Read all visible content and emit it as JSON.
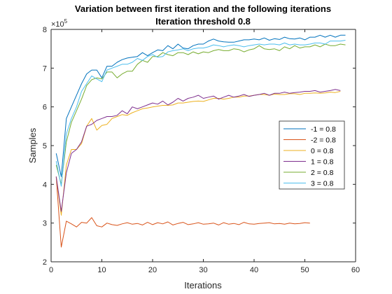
{
  "chart_data": {
    "type": "line",
    "title": "Variation between first iteration and the following iterations",
    "subtitle": "Iteration threshold 0.8",
    "xlabel": "Iterations",
    "ylabel": "Samples",
    "y_exponent_base": "×10",
    "y_exponent_power": "5",
    "xlim": [
      0,
      60
    ],
    "ylim": [
      2,
      8
    ],
    "xticks": [
      0,
      10,
      20,
      30,
      40,
      50,
      60
    ],
    "yticks": [
      2,
      3,
      4,
      5,
      6,
      7,
      8
    ],
    "legend_position": "center-right",
    "series": [
      {
        "name": "-1 = 0.8",
        "color": "#0072BD",
        "x": [
          1,
          2,
          3,
          4,
          5,
          6,
          7,
          8,
          9,
          10,
          11,
          12,
          13,
          14,
          15,
          16,
          17,
          18,
          19,
          20,
          21,
          22,
          23,
          24,
          25,
          26,
          27,
          28,
          29,
          30,
          31,
          32,
          33,
          34,
          35,
          36,
          37,
          38,
          39,
          40,
          41,
          42,
          43,
          44,
          45,
          46,
          47,
          48,
          49,
          50,
          51,
          52,
          53,
          54,
          55,
          56,
          57,
          58
        ],
        "values": [
          4.8,
          4.2,
          5.7,
          6.0,
          6.3,
          6.6,
          6.85,
          6.95,
          6.95,
          6.75,
          7.05,
          7.05,
          7.15,
          7.22,
          7.26,
          7.28,
          7.3,
          7.4,
          7.32,
          7.4,
          7.47,
          7.45,
          7.58,
          7.5,
          7.62,
          7.52,
          7.5,
          7.58,
          7.62,
          7.62,
          7.7,
          7.75,
          7.7,
          7.68,
          7.67,
          7.67,
          7.7,
          7.73,
          7.73,
          7.75,
          7.73,
          7.78,
          7.72,
          7.76,
          7.74,
          7.8,
          7.76,
          7.75,
          7.78,
          7.73,
          7.8,
          7.8,
          7.85,
          7.8,
          7.85,
          7.8,
          7.85,
          7.85
        ]
      },
      {
        "name": "-2 = 0.8",
        "color": "#D95319",
        "x": [
          1,
          2,
          3,
          4,
          5,
          6,
          7,
          8,
          9,
          10,
          11,
          12,
          13,
          14,
          15,
          16,
          17,
          18,
          19,
          20,
          21,
          22,
          23,
          24,
          25,
          26,
          27,
          28,
          29,
          30,
          31,
          32,
          33,
          34,
          35,
          36,
          37,
          38,
          39,
          40,
          41,
          42,
          43,
          44,
          45,
          46,
          47,
          48,
          49,
          50,
          51
        ],
        "values": [
          4.2,
          2.38,
          3.05,
          2.98,
          2.9,
          3.02,
          3.0,
          3.14,
          2.93,
          2.9,
          3.0,
          2.96,
          2.94,
          2.98,
          3.01,
          2.97,
          2.99,
          2.95,
          3.02,
          2.96,
          3.01,
          2.98,
          3.03,
          2.95,
          2.99,
          3.02,
          2.96,
          2.98,
          3.01,
          2.97,
          2.98,
          3.0,
          2.95,
          3.01,
          2.97,
          2.99,
          2.96,
          3.02,
          2.98,
          2.97,
          2.99,
          3.0,
          3.01,
          2.98,
          2.99,
          2.97,
          3.0,
          2.98,
          2.99,
          3.01,
          3.0
        ]
      },
      {
        "name": "0 = 0.8",
        "color": "#EDB120",
        "x": [
          1,
          2,
          3,
          4,
          5,
          6,
          7,
          8,
          9,
          10,
          11,
          12,
          13,
          14,
          15,
          16,
          17,
          18,
          19,
          20,
          21,
          22,
          23,
          24,
          25,
          26,
          27,
          28,
          29,
          30,
          31,
          32,
          33,
          34,
          35,
          36,
          37,
          38,
          39,
          40,
          41,
          42,
          43,
          44,
          45,
          46,
          47,
          48,
          49,
          50,
          51,
          52,
          53,
          54,
          55,
          56,
          57
        ],
        "values": [
          4.2,
          3.2,
          4.5,
          4.9,
          4.9,
          5.05,
          5.5,
          5.7,
          5.4,
          5.52,
          5.55,
          5.7,
          5.75,
          5.8,
          5.78,
          5.85,
          5.9,
          5.95,
          5.97,
          6.0,
          6.02,
          6.04,
          6.04,
          6.05,
          6.1,
          6.1,
          6.12,
          6.14,
          6.15,
          6.14,
          6.18,
          6.22,
          6.22,
          6.2,
          6.22,
          6.25,
          6.25,
          6.28,
          6.28,
          6.3,
          6.32,
          6.32,
          6.3,
          6.33,
          6.32,
          6.32,
          6.34,
          6.34,
          6.32,
          6.35,
          6.35,
          6.36,
          6.35,
          6.36,
          6.38,
          6.37,
          6.4
        ]
      },
      {
        "name": "1 = 0.8",
        "color": "#7E2F8E",
        "x": [
          1,
          2,
          3,
          4,
          5,
          6,
          7,
          8,
          9,
          10,
          11,
          12,
          13,
          14,
          15,
          16,
          17,
          18,
          19,
          20,
          21,
          22,
          23,
          24,
          25,
          26,
          27,
          28,
          29,
          30,
          31,
          32,
          33,
          34,
          35,
          36,
          37,
          38,
          39,
          40,
          41,
          42,
          43,
          44,
          45,
          46,
          47,
          48,
          49,
          50,
          51,
          52,
          53,
          54,
          55,
          56,
          57
        ],
        "values": [
          4.2,
          3.3,
          4.3,
          4.8,
          4.9,
          5.1,
          5.5,
          5.55,
          5.65,
          5.7,
          5.75,
          5.75,
          5.78,
          5.9,
          5.82,
          6.0,
          5.95,
          6.0,
          6.05,
          6.1,
          6.07,
          6.15,
          6.05,
          6.12,
          6.22,
          6.15,
          6.22,
          6.25,
          6.3,
          6.22,
          6.25,
          6.28,
          6.2,
          6.25,
          6.3,
          6.25,
          6.28,
          6.32,
          6.27,
          6.3,
          6.32,
          6.35,
          6.3,
          6.35,
          6.35,
          6.38,
          6.35,
          6.37,
          6.38,
          6.4,
          6.4,
          6.42,
          6.38,
          6.4,
          6.42,
          6.45,
          6.42
        ]
      },
      {
        "name": "2 = 0.8",
        "color": "#77AC30",
        "x": [
          1,
          2,
          3,
          4,
          5,
          6,
          7,
          8,
          9,
          10,
          11,
          12,
          13,
          14,
          15,
          16,
          17,
          18,
          19,
          20,
          21,
          22,
          23,
          24,
          25,
          26,
          27,
          28,
          29,
          30,
          31,
          32,
          33,
          34,
          35,
          36,
          37,
          38,
          39,
          40,
          41,
          42,
          43,
          44,
          45,
          46,
          47,
          48,
          49,
          50,
          51,
          52,
          53,
          54,
          55,
          56,
          57,
          58
        ],
        "values": [
          4.5,
          4.0,
          5.1,
          5.6,
          5.9,
          6.2,
          6.55,
          6.7,
          6.75,
          6.72,
          6.9,
          6.9,
          6.75,
          6.85,
          6.92,
          6.92,
          7.1,
          7.2,
          7.15,
          7.3,
          7.3,
          7.4,
          7.35,
          7.32,
          7.4,
          7.4,
          7.35,
          7.42,
          7.37,
          7.42,
          7.4,
          7.45,
          7.48,
          7.45,
          7.45,
          7.5,
          7.48,
          7.42,
          7.47,
          7.5,
          7.58,
          7.5,
          7.48,
          7.5,
          7.45,
          7.55,
          7.5,
          7.58,
          7.52,
          7.55,
          7.55,
          7.6,
          7.55,
          7.62,
          7.58,
          7.58,
          7.62,
          7.6
        ]
      },
      {
        "name": "3 = 0.8",
        "color": "#4DBEEE",
        "x": [
          1,
          2,
          3,
          4,
          5,
          6,
          7,
          8,
          9,
          10,
          11,
          12,
          13,
          14,
          15,
          16,
          17,
          18,
          19,
          20,
          21,
          22,
          23,
          24,
          25,
          26,
          27,
          28,
          29,
          30,
          31,
          32,
          33,
          34,
          35,
          36,
          37,
          38,
          39,
          40,
          41,
          42,
          43,
          44,
          45,
          46,
          47,
          48,
          49,
          50,
          51,
          52,
          53,
          54,
          55,
          56,
          57,
          58
        ],
        "values": [
          4.6,
          3.95,
          5.3,
          5.7,
          6.0,
          6.4,
          6.6,
          6.8,
          6.72,
          6.65,
          6.95,
          7.0,
          7.05,
          7.1,
          7.1,
          7.15,
          7.25,
          7.2,
          7.3,
          7.35,
          7.28,
          7.3,
          7.42,
          7.45,
          7.47,
          7.5,
          7.45,
          7.5,
          7.52,
          7.52,
          7.55,
          7.6,
          7.58,
          7.55,
          7.58,
          7.6,
          7.58,
          7.55,
          7.58,
          7.6,
          7.62,
          7.6,
          7.62,
          7.62,
          7.6,
          7.65,
          7.6,
          7.62,
          7.6,
          7.6,
          7.62,
          7.65,
          7.65,
          7.62,
          7.7,
          7.7,
          7.7,
          7.72
        ]
      }
    ]
  }
}
